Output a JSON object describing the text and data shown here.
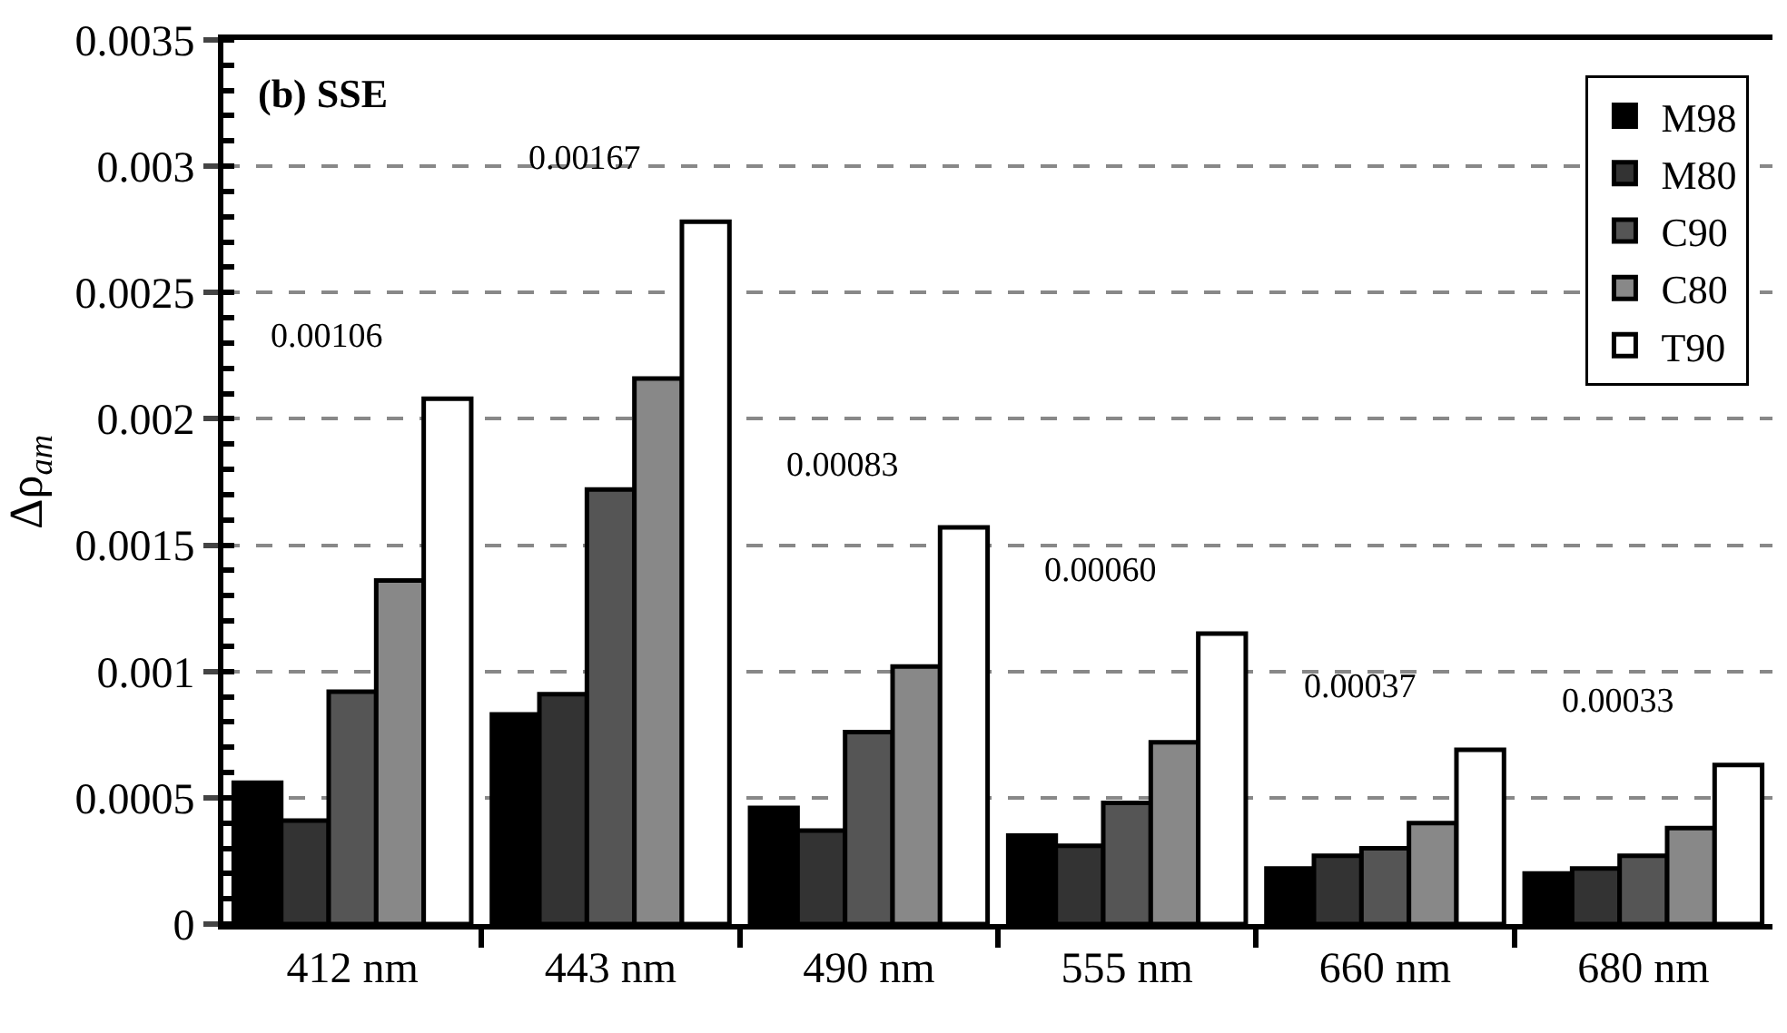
{
  "chart_data": {
    "type": "bar",
    "title": "(b) SSE",
    "ylabel": "Δρ$_{am}$",
    "categories": [
      "412 nm",
      "443 nm",
      "490 nm",
      "555 nm",
      "660 nm",
      "680 nm"
    ],
    "series": [
      {
        "name": "M98",
        "color": "#000000",
        "values": [
          0.00056,
          0.00083,
          0.00046,
          0.00035,
          0.00022,
          0.0002
        ]
      },
      {
        "name": "M80",
        "color": "#333333",
        "values": [
          0.00041,
          0.00091,
          0.00037,
          0.00031,
          0.00027,
          0.00022
        ]
      },
      {
        "name": "C90",
        "color": "#555555",
        "values": [
          0.00092,
          0.00172,
          0.00076,
          0.00048,
          0.0003,
          0.00027
        ]
      },
      {
        "name": "C80",
        "color": "#888888",
        "values": [
          0.00136,
          0.00216,
          0.00102,
          0.00072,
          0.0004,
          0.00038
        ]
      },
      {
        "name": "T90",
        "color": "#ffffff",
        "values": [
          0.00208,
          0.00278,
          0.00157,
          0.00115,
          0.00069,
          0.00063
        ]
      }
    ],
    "annotations": [
      "0.00106",
      "0.00167",
      "0.00083",
      "0.00060",
      "0.00037",
      "0.00033"
    ],
    "ylim": [
      0,
      0.0035
    ],
    "yticks": [
      0,
      0.0005,
      0.001,
      0.0015,
      0.002,
      0.0025,
      0.003,
      0.0035
    ],
    "grid": "y",
    "legend": "top right"
  }
}
